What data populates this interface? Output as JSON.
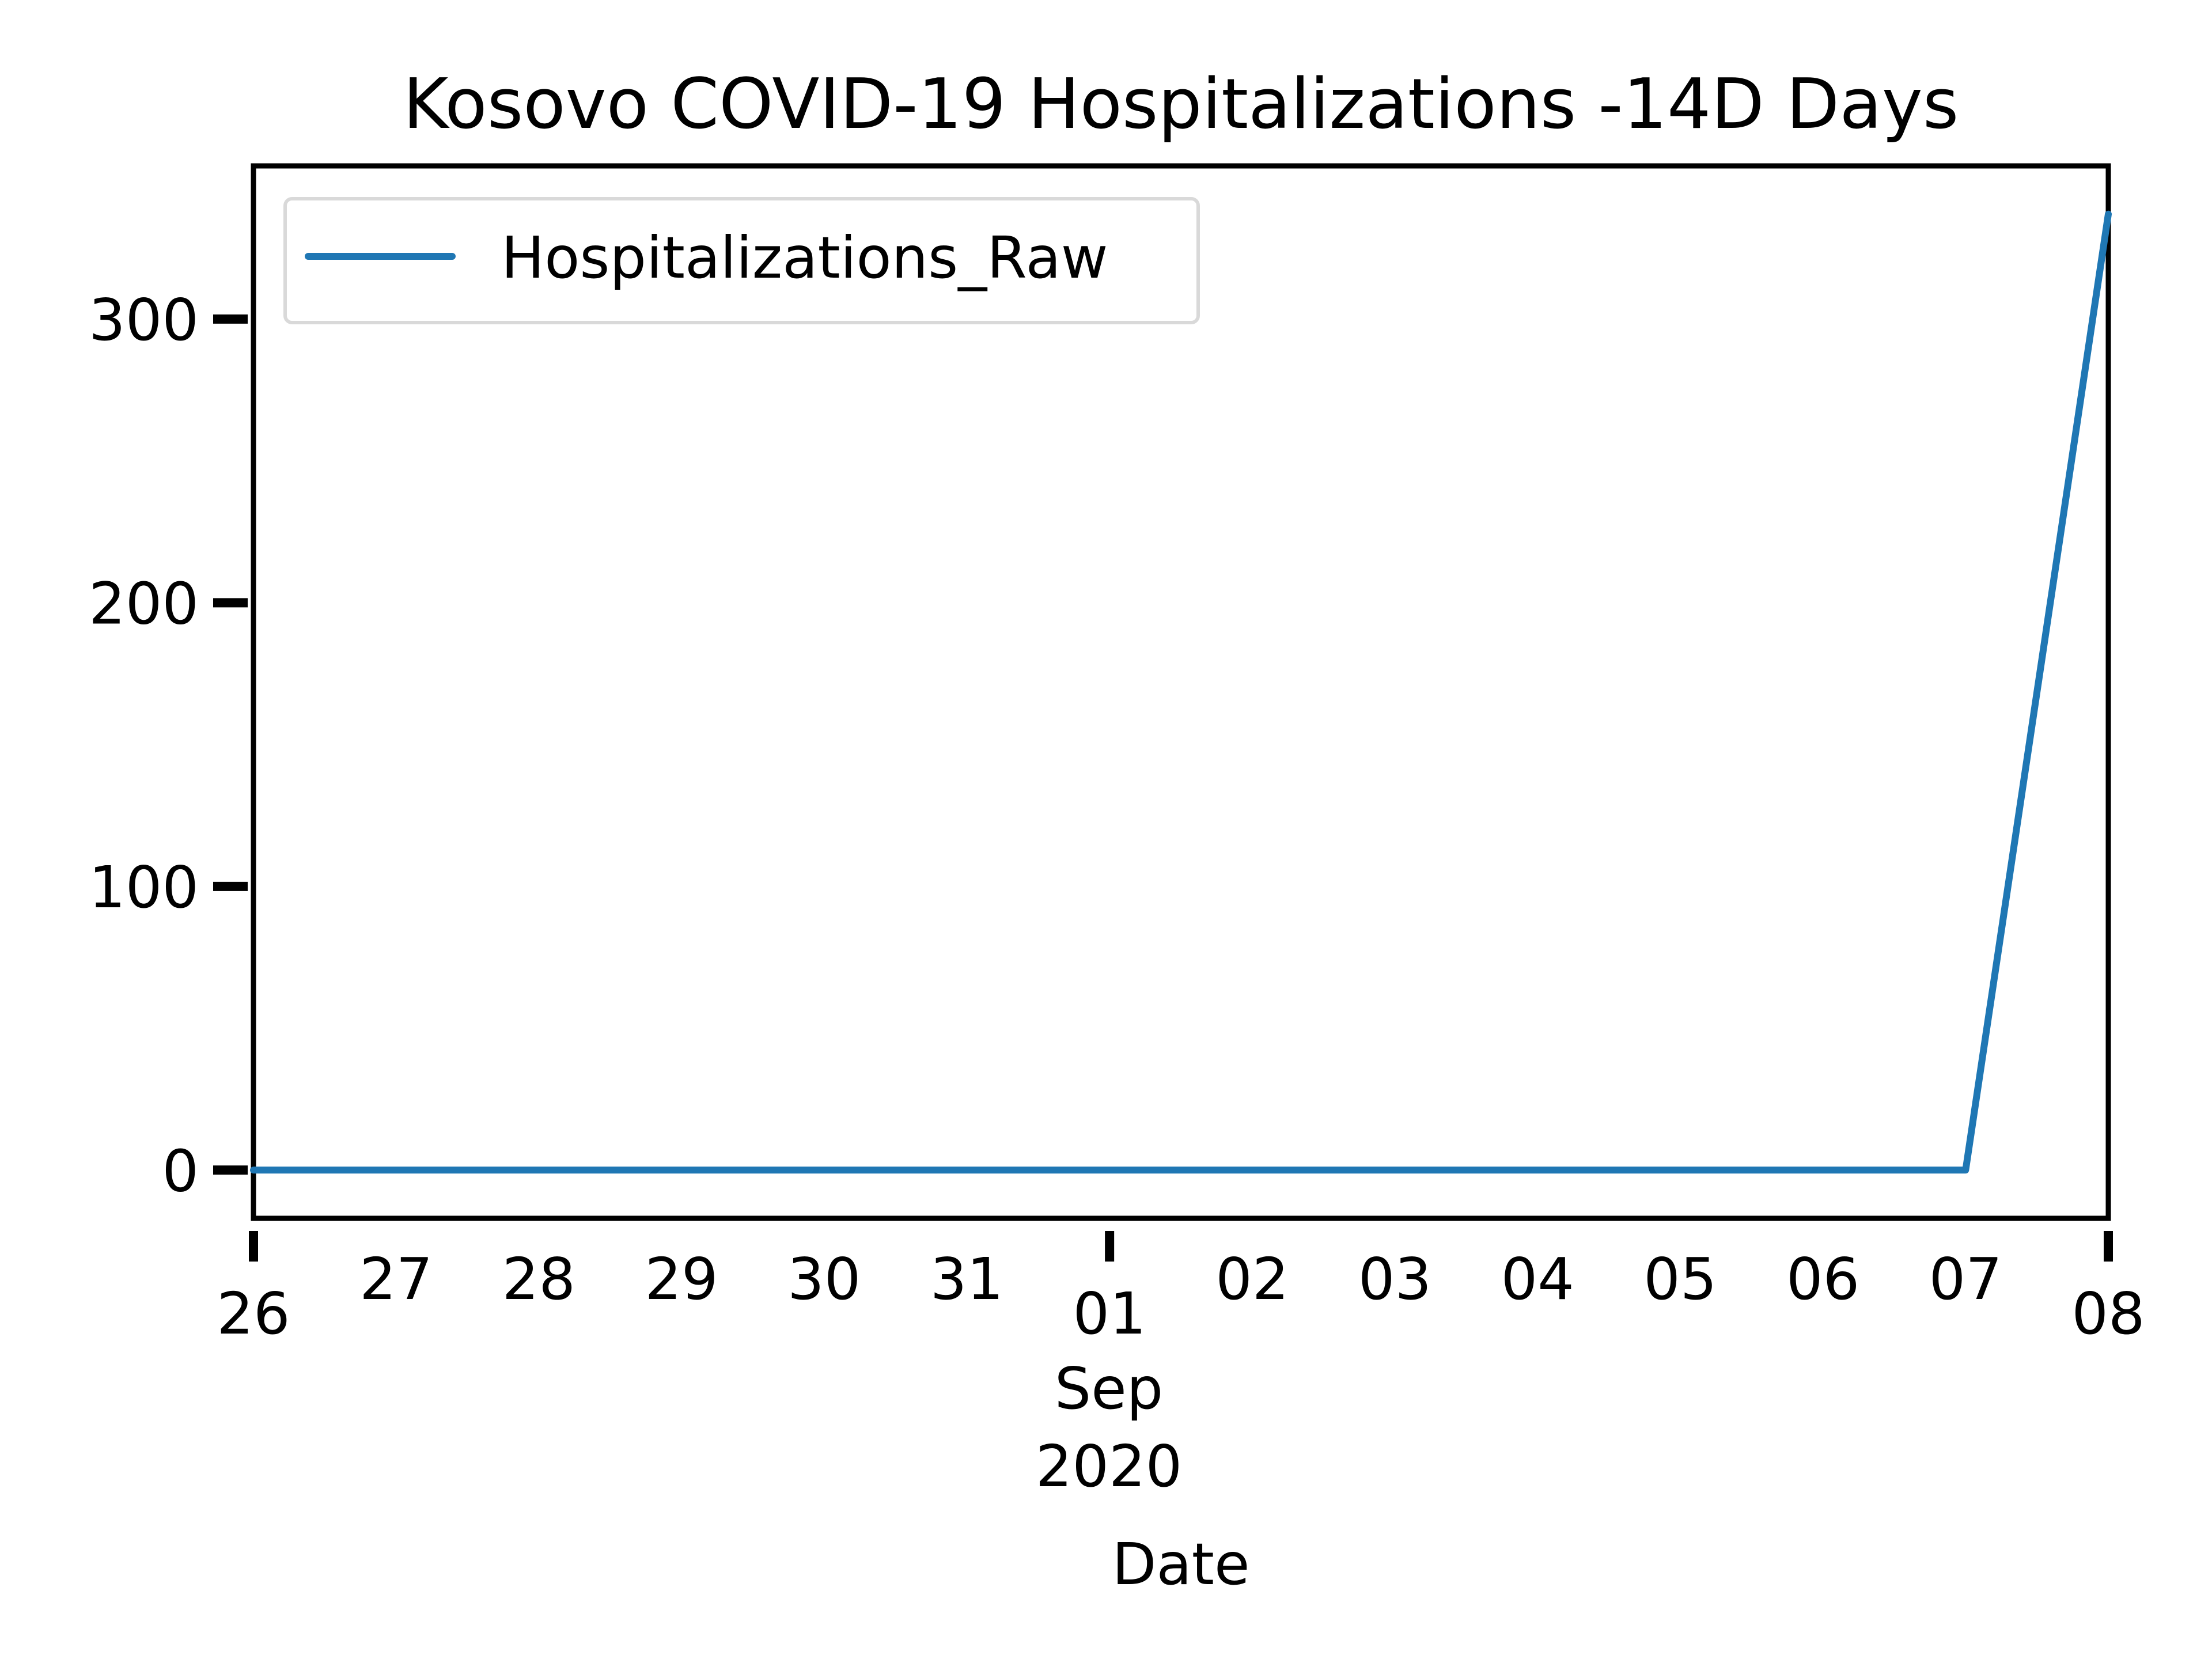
{
  "chart_data": {
    "type": "line",
    "title": "Kosovo COVID-19 Hospitalizations -14D Days",
    "xlabel": "Date",
    "ylabel": "",
    "x": [
      "2020-08-26",
      "2020-08-27",
      "2020-08-28",
      "2020-08-29",
      "2020-08-30",
      "2020-08-31",
      "2020-09-01",
      "2020-09-02",
      "2020-09-03",
      "2020-09-04",
      "2020-09-05",
      "2020-09-06",
      "2020-09-07",
      "2020-09-08"
    ],
    "series": [
      {
        "name": "Hospitalizations_Raw",
        "color": "#1f77b4",
        "values": [
          0,
          0,
          0,
          0,
          0,
          0,
          0,
          0,
          0,
          0,
          0,
          0,
          0,
          337
        ]
      }
    ],
    "xticks": [
      "26",
      "27",
      "28",
      "29",
      "30",
      "31",
      "01",
      "02",
      "03",
      "04",
      "05",
      "06",
      "07",
      "08"
    ],
    "xtick_major": [
      "26",
      "01",
      "08"
    ],
    "month_label": "Sep",
    "year_label": "2020",
    "yticks": [
      0,
      100,
      200,
      300
    ],
    "ytick_labels": [
      "0",
      "100",
      "200",
      "300"
    ],
    "ylim": [
      -17,
      354
    ],
    "legend_position": "upper-left",
    "grid": false
  }
}
